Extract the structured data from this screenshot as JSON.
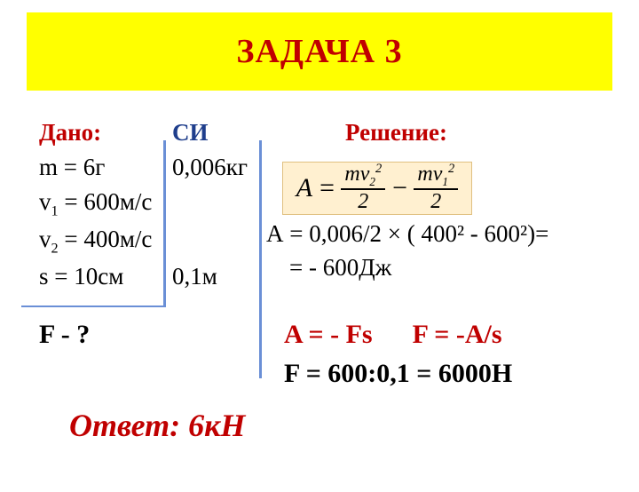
{
  "title": "ЗАДАЧА 3",
  "headers": {
    "given": "Дано:",
    "si": "СИ",
    "solution": "Решение:"
  },
  "given": {
    "m": "m = 6г",
    "v1": "v",
    "v1_sub": "1",
    "v1_rest": " = 600м/с",
    "v2": "v",
    "v2_sub": "2",
    "v2_rest": " = 400м/с",
    "s": "s = 10cм"
  },
  "si": {
    "m": "0,006кг",
    "s": "0,1м"
  },
  "formula": {
    "A": "A",
    "eq": "=",
    "mv2": "mv",
    "sub2": "2",
    "sup2": "2",
    "mv1": "mv",
    "sub1": "1",
    "den": "2",
    "minus": "−"
  },
  "calc": {
    "line1": "А = 0,006/2 × ( 400² -   600²)=",
    "line2": "= - 600Дж"
  },
  "eqs": {
    "red": "A = - Fs      F = -A/s"
  },
  "find": "F - ?",
  "result": "F = 600:0,1 = 6000Н",
  "answer": "Ответ: 6кН",
  "colors": {
    "title_bg": "#ffff00",
    "title_fg": "#c00000",
    "si_header": "#1f3e8c",
    "line": "#6a8fd6",
    "formula_bg": "#fff0d0"
  }
}
